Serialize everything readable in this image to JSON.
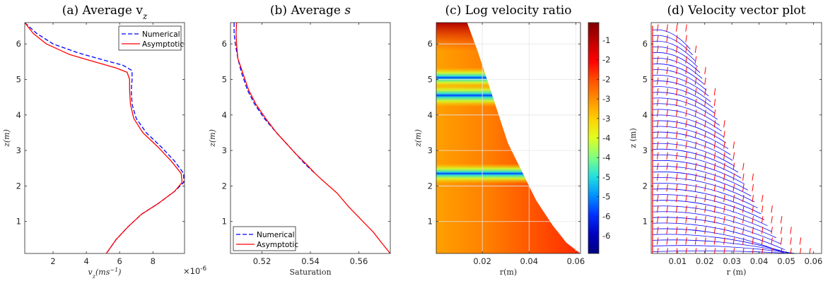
{
  "chart_data": [
    {
      "id": "a",
      "type": "line",
      "title": "(a) Average v",
      "title_sub": "z",
      "xlabel": "v",
      "xlabel_sub": "z",
      "xlabel_unit": "(ms",
      "xlabel_unit_sup": "−1",
      "xlabel_unit_end": ")",
      "ylabel": "z(m)",
      "exponent_label": "×10",
      "exponent_sup": "-6",
      "xlim": [
        0.3,
        9.9
      ],
      "ylim": [
        0.1,
        6.6
      ],
      "xticks": [
        2,
        4,
        6,
        8
      ],
      "yticks": [
        1,
        2,
        3,
        4,
        5,
        6
      ],
      "legend_position": "top-right",
      "series": [
        {
          "name": "Numerical",
          "color": "#0000ff",
          "dash": "6,3",
          "points": [
            [
              0.3,
              6.6
            ],
            [
              1.0,
              6.3
            ],
            [
              2.0,
              6.0
            ],
            [
              3.5,
              5.75
            ],
            [
              5.0,
              5.55
            ],
            [
              6.2,
              5.4
            ],
            [
              6.75,
              5.25
            ],
            [
              6.75,
              5.0
            ],
            [
              6.7,
              4.7
            ],
            [
              6.75,
              4.3
            ],
            [
              7.0,
              3.9
            ],
            [
              7.6,
              3.5
            ],
            [
              8.5,
              3.1
            ],
            [
              9.3,
              2.7
            ],
            [
              9.85,
              2.35
            ],
            [
              9.85,
              2.1
            ],
            [
              9.3,
              1.85
            ],
            [
              8.3,
              1.5
            ],
            [
              7.3,
              1.2
            ],
            [
              6.5,
              0.85
            ],
            [
              5.8,
              0.5
            ],
            [
              5.2,
              0.1
            ]
          ]
        },
        {
          "name": "Asymptotic",
          "color": "#ff0000",
          "dash": "",
          "points": [
            [
              0.3,
              6.6
            ],
            [
              0.8,
              6.3
            ],
            [
              1.6,
              6.0
            ],
            [
              3.0,
              5.7
            ],
            [
              4.6,
              5.48
            ],
            [
              5.8,
              5.32
            ],
            [
              6.45,
              5.2
            ],
            [
              6.6,
              5.0
            ],
            [
              6.6,
              4.7
            ],
            [
              6.65,
              4.3
            ],
            [
              6.85,
              3.9
            ],
            [
              7.4,
              3.5
            ],
            [
              8.3,
              3.1
            ],
            [
              9.1,
              2.7
            ],
            [
              9.7,
              2.35
            ],
            [
              9.75,
              2.1
            ],
            [
              9.3,
              1.85
            ],
            [
              8.3,
              1.5
            ],
            [
              7.3,
              1.2
            ],
            [
              6.5,
              0.85
            ],
            [
              5.8,
              0.5
            ],
            [
              5.2,
              0.1
            ]
          ]
        }
      ]
    },
    {
      "id": "b",
      "type": "line",
      "title": "(b) Average ",
      "title_italic": "s",
      "xlabel": "Saturation",
      "ylabel": "z(m)",
      "xlim": [
        0.507,
        0.573
      ],
      "ylim": [
        0.1,
        6.6
      ],
      "xticks": [
        0.52,
        0.54,
        0.56
      ],
      "yticks": [
        1,
        2,
        3,
        4,
        5,
        6
      ],
      "legend_position": "bottom-left",
      "series": [
        {
          "name": "Numerical",
          "color": "#0000ff",
          "dash": "6,3",
          "points": [
            [
              0.5085,
              6.6
            ],
            [
              0.5085,
              6.3
            ],
            [
              0.509,
              6.0
            ],
            [
              0.51,
              5.6
            ],
            [
              0.5115,
              5.2
            ],
            [
              0.514,
              4.7
            ],
            [
              0.517,
              4.3
            ],
            [
              0.521,
              3.9
            ],
            [
              0.526,
              3.5
            ],
            [
              0.53,
              3.2
            ],
            [
              0.534,
              2.9
            ],
            [
              0.538,
              2.6
            ],
            [
              0.542,
              2.35
            ]
          ]
        },
        {
          "name": "Asymptotic",
          "color": "#ff0000",
          "dash": "",
          "points": [
            [
              0.5095,
              6.6
            ],
            [
              0.5093,
              6.3
            ],
            [
              0.5095,
              6.0
            ],
            [
              0.51,
              5.6
            ],
            [
              0.512,
              5.2
            ],
            [
              0.5145,
              4.7
            ],
            [
              0.5175,
              4.3
            ],
            [
              0.5215,
              3.9
            ],
            [
              0.526,
              3.5
            ],
            [
              0.53,
              3.2
            ],
            [
              0.534,
              2.9
            ],
            [
              0.5385,
              2.6
            ],
            [
              0.542,
              2.35
            ],
            [
              0.546,
              2.1
            ],
            [
              0.551,
              1.8
            ],
            [
              0.556,
              1.4
            ],
            [
              0.561,
              1.05
            ],
            [
              0.566,
              0.7
            ],
            [
              0.57,
              0.35
            ],
            [
              0.573,
              0.1
            ]
          ]
        }
      ]
    },
    {
      "id": "c",
      "type": "heatmap",
      "title": "(c) Log velocity ratio",
      "xlabel": "r(m)",
      "ylabel": "z(m)",
      "xlim": [
        0.0003,
        0.062
      ],
      "ylim": [
        0.1,
        6.6
      ],
      "xticks": [
        0.02,
        0.04,
        0.06
      ],
      "yticks": [
        1,
        2,
        3,
        4,
        5,
        6
      ],
      "grid": true,
      "boundary": [
        [
          0.0135,
          6.6
        ],
        [
          0.018,
          5.8
        ],
        [
          0.022,
          5.0
        ],
        [
          0.027,
          4.0
        ],
        [
          0.031,
          3.2
        ],
        [
          0.037,
          2.4
        ],
        [
          0.043,
          1.6
        ],
        [
          0.05,
          0.9
        ],
        [
          0.056,
          0.4
        ],
        [
          0.062,
          0.1
        ]
      ],
      "colorbar": {
        "tick_labels": [
          "-1",
          "-2",
          "-2",
          "-3",
          "-3",
          "-4",
          "-4",
          "-5",
          "-5",
          "-6",
          "-6"
        ],
        "colors": [
          "#800000",
          "#c00000",
          "#ff0000",
          "#ff5000",
          "#ff9000",
          "#ffd000",
          "#e0ff20",
          "#80ff80",
          "#20e0e0",
          "#0090ff",
          "#0030ff",
          "#0000c0",
          "#000080"
        ]
      }
    },
    {
      "id": "d",
      "type": "scatter",
      "title": "(d) Velocity vector plot",
      "xlabel": "r (m)",
      "ylabel": "z (m)",
      "xlim": [
        0.0003,
        0.063
      ],
      "ylim": [
        0.1,
        6.6
      ],
      "xticks": [
        0.01,
        0.02,
        0.03,
        0.04,
        0.05,
        0.06
      ],
      "xtick_labels": [
        "0.01",
        "0.02",
        "0.03",
        "0.04",
        "0.05",
        "0.06"
      ],
      "yticks": [
        1,
        2,
        3,
        4,
        5,
        6
      ],
      "boundary": [
        [
          0.0135,
          6.6
        ],
        [
          0.018,
          5.8
        ],
        [
          0.022,
          5.0
        ],
        [
          0.027,
          4.0
        ],
        [
          0.031,
          3.2
        ],
        [
          0.037,
          2.4
        ],
        [
          0.043,
          1.6
        ],
        [
          0.05,
          0.9
        ],
        [
          0.056,
          0.4
        ],
        [
          0.062,
          0.1
        ]
      ],
      "arrow_colors": [
        "#ff0000",
        "#0000ff"
      ]
    }
  ]
}
